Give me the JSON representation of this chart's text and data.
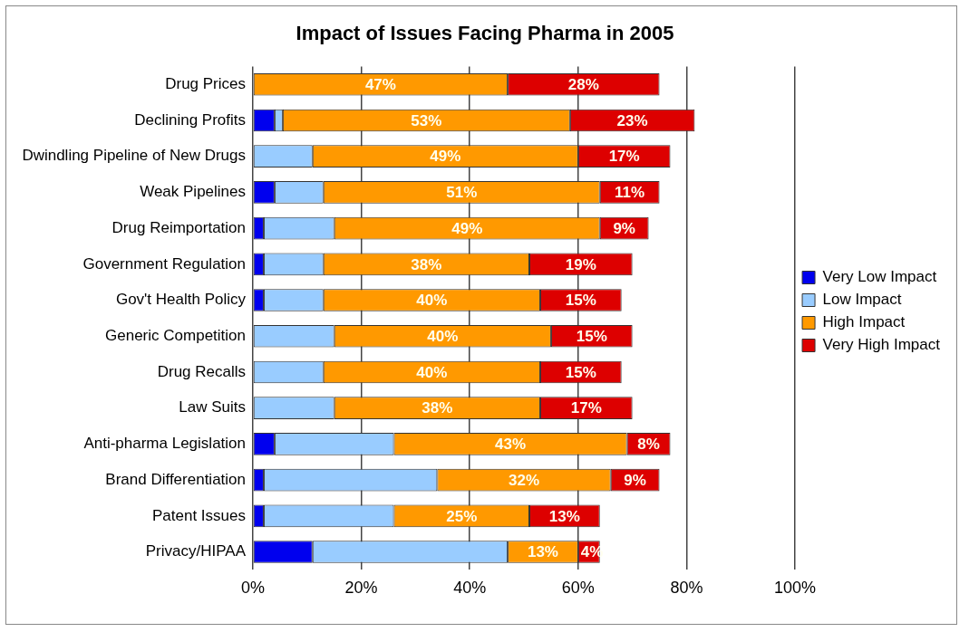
{
  "chart_data": {
    "type": "bar",
    "orientation": "horizontal",
    "stacked": true,
    "title": "Impact of Issues Facing Pharma in 2005",
    "categories": [
      "Drug Prices",
      "Declining Profits",
      "Dwindling Pipeline of New Drugs",
      "Weak Pipelines",
      "Drug Reimportation",
      "Government Regulation",
      "Gov't Health Policy",
      "Generic Competition",
      "Drug Recalls",
      "Law Suits",
      "Anti-pharma Legislation",
      "Brand Differentiation",
      "Patent Issues",
      "Privacy/HIPAA"
    ],
    "series": [
      {
        "name": "Very Low Impact",
        "color": "#0000ee",
        "values": [
          0,
          4,
          0,
          4,
          2,
          2,
          2,
          0,
          0,
          0,
          4,
          2,
          2,
          11
        ]
      },
      {
        "name": "Low Impact",
        "color": "#99ccff",
        "values": [
          0,
          1.5,
          11,
          9,
          13,
          11,
          11,
          15,
          13,
          15,
          22,
          32,
          24,
          36
        ]
      },
      {
        "name": "High Impact",
        "color": "#ff9900",
        "values": [
          47,
          53,
          49,
          51,
          49,
          38,
          40,
          40,
          40,
          38,
          43,
          32,
          25,
          13
        ],
        "value_labels": [
          "47%",
          "53%",
          "49%",
          "51%",
          "49%",
          "38%",
          "40%",
          "40%",
          "40%",
          "38%",
          "43%",
          "32%",
          "25%",
          "13%"
        ]
      },
      {
        "name": "Very High Impact",
        "color": "#dd0000",
        "values": [
          28,
          23,
          17,
          11,
          9,
          19,
          15,
          15,
          15,
          17,
          8,
          9,
          13,
          4
        ],
        "value_labels": [
          "28%",
          "23%",
          "17%",
          "11%",
          "9%",
          "19%",
          "15%",
          "15%",
          "15%",
          "17%",
          "8%",
          "9%",
          "13%",
          "4%"
        ]
      }
    ],
    "xlim": [
      0,
      100
    ],
    "xticks": [
      {
        "value": 0,
        "label": "0%"
      },
      {
        "value": 20,
        "label": "20%"
      },
      {
        "value": 40,
        "label": "40%"
      },
      {
        "value": 60,
        "label": "60%"
      },
      {
        "value": 80,
        "label": "80%"
      },
      {
        "value": 100,
        "label": "100%"
      }
    ],
    "grid": "x",
    "legend": "right"
  }
}
